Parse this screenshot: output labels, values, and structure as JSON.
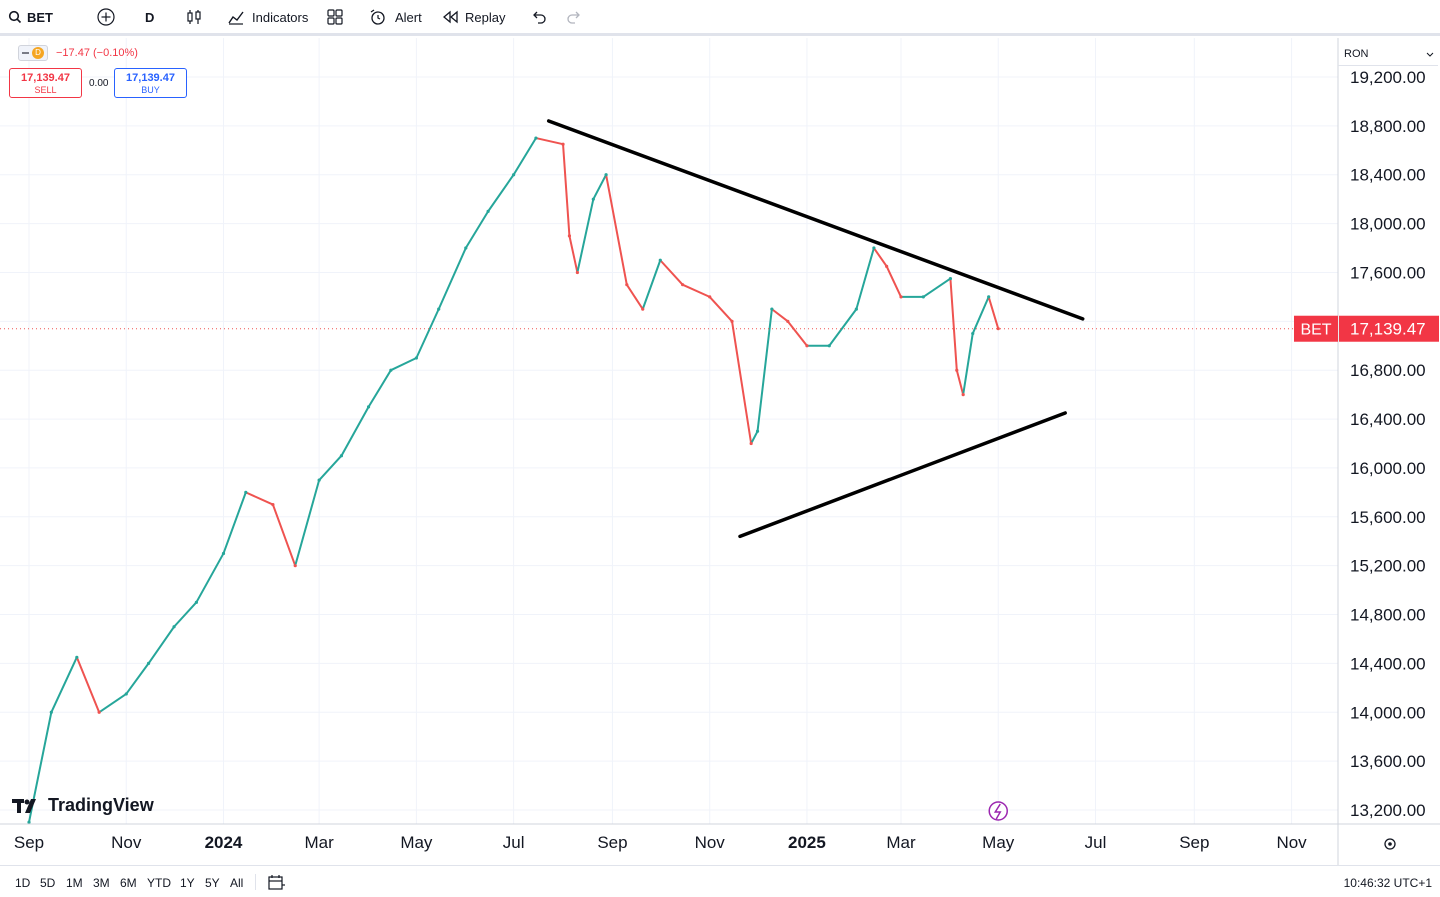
{
  "toolbar": {
    "symbol": "BET",
    "interval": "D",
    "indicators_label": "Indicators",
    "alert_label": "Alert",
    "replay_label": "Replay"
  },
  "legend": {
    "interval": "D",
    "change": "−17.47 (−0.10%)",
    "sell_price": "17,139.47",
    "sell_label": "SELL",
    "spread": "0.00",
    "buy_price": "17,139.47",
    "buy_label": "BUY"
  },
  "price_scale": {
    "currency": "RON",
    "last_symbol": "BET",
    "last_price": "17,139.47"
  },
  "branding": {
    "logo_text": "TradingView"
  },
  "bottom_bar": {
    "ranges": [
      "1D",
      "5D",
      "1M",
      "3M",
      "6M",
      "YTD",
      "1Y",
      "5Y",
      "All"
    ],
    "clock": "10:46:32 UTC+1"
  },
  "colors": {
    "up": "#26a69a",
    "down": "#ef5350",
    "last_price_bg": "#f23645",
    "trendline": "#000000",
    "grid": "#f0f3fa"
  },
  "chart_data": {
    "type": "line",
    "title": "BET",
    "interval": "D",
    "currency": "RON",
    "x_axis_ticks": [
      "Sep",
      "Nov",
      "2024",
      "Mar",
      "May",
      "Jul",
      "Sep",
      "Nov",
      "2025",
      "Mar",
      "May",
      "Jul",
      "Sep",
      "Nov"
    ],
    "y_axis_ticks": [
      13200,
      13600,
      14000,
      14400,
      14800,
      15200,
      15600,
      16000,
      16400,
      16800,
      17200,
      17600,
      18000,
      18400,
      18800,
      19200
    ],
    "y_tick_labels": [
      "13,200.00",
      "13,600.00",
      "14,000.00",
      "14,400.00",
      "14,800.00",
      "15,200.00",
      "15,600.00",
      "16,000.00",
      "16,400.00",
      "16,800.00",
      "17,200.00",
      "17,600.00",
      "18,000.00",
      "18,400.00",
      "18,800.00",
      "19,200.00"
    ],
    "ylim": [
      13100,
      19300
    ],
    "last_price": 17139.47,
    "grid": true,
    "series": [
      {
        "x": [
          "2023-09-01",
          "2023-09-15",
          "2023-10-01",
          "2023-10-15",
          "2023-11-01",
          "2023-11-15",
          "2023-12-01",
          "2023-12-15",
          "2024-01-01",
          "2024-01-15",
          "2024-02-01",
          "2024-02-15",
          "2024-03-01",
          "2024-03-15",
          "2024-04-01",
          "2024-04-15",
          "2024-05-01",
          "2024-05-15",
          "2024-06-01",
          "2024-06-15",
          "2024-07-01",
          "2024-07-15",
          "2024-08-01",
          "2024-08-05",
          "2024-08-10",
          "2024-08-20",
          "2024-08-28",
          "2024-09-10",
          "2024-09-20",
          "2024-10-01",
          "2024-10-15",
          "2024-11-01",
          "2024-11-15",
          "2024-11-27",
          "2024-12-01",
          "2024-12-10",
          "2024-12-20",
          "2025-01-01",
          "2025-01-15",
          "2025-02-01",
          "2025-02-12",
          "2025-02-20",
          "2025-03-01",
          "2025-03-15",
          "2025-04-01",
          "2025-04-05",
          "2025-04-09",
          "2025-04-15",
          "2025-04-25",
          "2025-05-01"
        ],
        "values": [
          13100,
          14000,
          14450,
          14000,
          14150,
          14400,
          14700,
          14900,
          15300,
          15800,
          15700,
          15200,
          15900,
          16100,
          16500,
          16800,
          16900,
          17300,
          17800,
          18100,
          18400,
          18700,
          18650,
          17900,
          17600,
          18200,
          18400,
          17500,
          17300,
          17700,
          17500,
          17400,
          17200,
          16200,
          16300,
          17300,
          17200,
          17000,
          17000,
          17300,
          17800,
          17650,
          17400,
          17400,
          17550,
          16800,
          16600,
          17100,
          17400,
          17140
        ]
      }
    ],
    "trendlines": [
      {
        "name": "resistance",
        "points": [
          [
            "2024-07-23",
            18840
          ],
          [
            "2025-06-23",
            17220
          ]
        ]
      },
      {
        "name": "support",
        "points": [
          [
            "2024-11-20",
            15440
          ],
          [
            "2025-06-12",
            16450
          ]
        ]
      }
    ]
  }
}
